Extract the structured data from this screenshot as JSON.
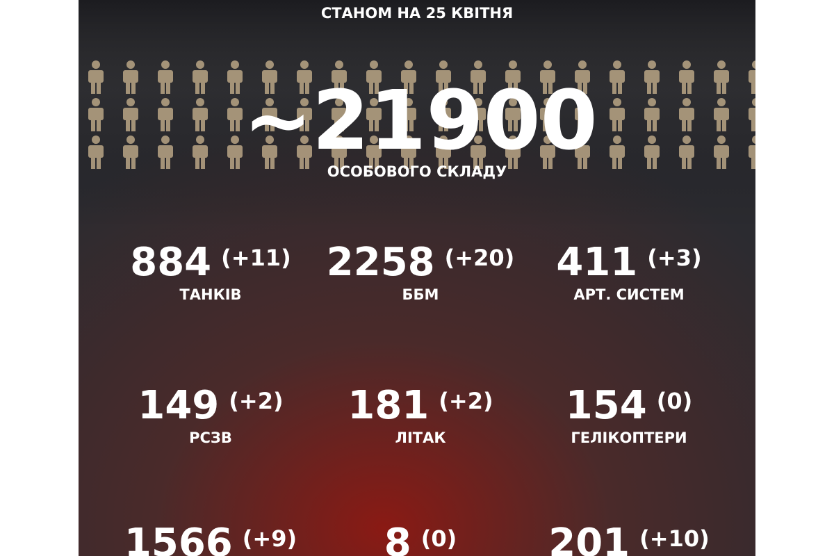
{
  "header": {
    "date": "СТАНОМ НА 25 КВІТНЯ"
  },
  "personnel": {
    "value": "~21900",
    "label": "ОСОБОВОГО СКЛАДУ"
  },
  "items": [
    {
      "value": "884",
      "delta": "(+11)",
      "label": "ТАНКІВ"
    },
    {
      "value": "2258",
      "delta": "(+20)",
      "label": "ББМ"
    },
    {
      "value": "411",
      "delta": "(+3)",
      "label": "АРТ. СИСТЕМ"
    },
    {
      "value": "149",
      "delta": "(+2)",
      "label": "РСЗВ"
    },
    {
      "value": "181",
      "delta": "(+2)",
      "label": "ЛІТАК"
    },
    {
      "value": "154",
      "delta": "(0)",
      "label": "ГЕЛІКОПТЕРИ"
    },
    {
      "value": "1566",
      "delta": "(+9)"
    },
    {
      "value": "8",
      "delta": "(0)"
    },
    {
      "value": "201",
      "delta": "(+10)"
    }
  ]
}
